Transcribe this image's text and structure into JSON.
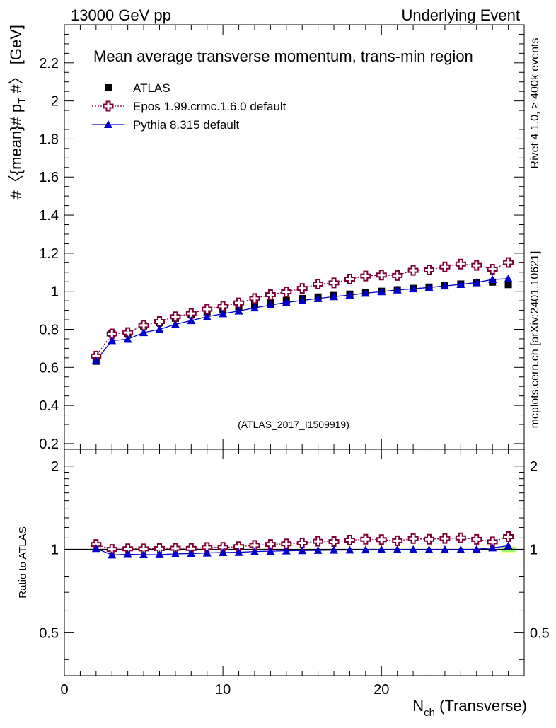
{
  "header": {
    "left": "13000 GeV pp",
    "right": "Underlying Event"
  },
  "side_labels": {
    "rivet": "Rivet 4.1.0, ≥ 400k events",
    "mcplots": "mcplots.cern.ch [arXiv:2401.10621]"
  },
  "colors": {
    "atlas": "#000000",
    "epos": "#800033",
    "pythia": "#0000cc",
    "band_yellow": "#ffff66",
    "band_green": "#99ff66"
  },
  "chart_data": [
    {
      "type": "scatter",
      "title": "Mean average transverse momentum, trans-min region",
      "watermark": "(ATLAS_2017_I1509919)",
      "ylabel_parts": [
        "#〈{mean}# p",
        "T",
        " #〉 [GeV]"
      ],
      "ylim": [
        0.17,
        2.4
      ],
      "yticks": [
        0.2,
        0.4,
        0.6,
        0.8,
        1,
        1.2,
        1.4,
        1.6,
        1.8,
        2,
        2.2
      ],
      "ytick_labels": [
        "0.2",
        "0.4",
        "0.6",
        "0.8",
        "1",
        "1.2",
        "1.4",
        "1.6",
        "1.8",
        "2",
        "2.2"
      ],
      "legend_position": "top-left",
      "x": [
        2,
        3,
        4,
        5,
        6,
        7,
        8,
        9,
        10,
        11,
        12,
        13,
        14,
        15,
        16,
        17,
        18,
        19,
        20,
        21,
        22,
        23,
        24,
        25,
        26,
        27,
        28
      ],
      "series": [
        {
          "name": "ATLAS",
          "marker": "square",
          "values": [
            0.632,
            0.776,
            0.779,
            0.818,
            0.835,
            0.858,
            0.876,
            0.892,
            0.906,
            0.918,
            0.93,
            0.942,
            0.952,
            0.962,
            0.97,
            0.978,
            0.985,
            0.993,
            1.0,
            1.008,
            1.015,
            1.022,
            1.03,
            1.038,
            1.045,
            1.048,
            1.035
          ]
        },
        {
          "name": "Epos 1.99.crmc.1.6.0 default",
          "marker": "open-cross",
          "values": [
            0.659,
            0.776,
            0.783,
            0.821,
            0.841,
            0.866,
            0.883,
            0.906,
            0.921,
            0.939,
            0.962,
            0.982,
            0.997,
            1.015,
            1.038,
            1.044,
            1.064,
            1.08,
            1.085,
            1.083,
            1.11,
            1.112,
            1.128,
            1.143,
            1.136,
            1.116,
            1.151
          ]
        },
        {
          "name": "Pythia 8.315 default",
          "marker": "triangle",
          "values": [
            0.637,
            0.741,
            0.748,
            0.783,
            0.8,
            0.826,
            0.846,
            0.866,
            0.882,
            0.896,
            0.913,
            0.928,
            0.941,
            0.952,
            0.962,
            0.972,
            0.98,
            0.99,
            0.998,
            1.007,
            1.013,
            1.02,
            1.028,
            1.036,
            1.046,
            1.062,
            1.066
          ]
        }
      ]
    },
    {
      "type": "scatter",
      "ylabel": "Ratio to ATLAS",
      "xlabel_main": "N",
      "xlabel_sub": "ch",
      "xlabel_tail": " (Transverse)",
      "xlim": [
        0,
        29
      ],
      "xticks": [
        0,
        10,
        20
      ],
      "xtick_labels": [
        "0",
        "10",
        "20"
      ],
      "ylim": [
        0.35,
        2.3
      ],
      "yticks": [
        0.5,
        1,
        2
      ],
      "ytick_labels": [
        "0.5",
        "1",
        "2"
      ],
      "x": [
        2,
        3,
        4,
        5,
        6,
        7,
        8,
        9,
        10,
        11,
        12,
        13,
        14,
        15,
        16,
        17,
        18,
        19,
        20,
        21,
        22,
        23,
        24,
        25,
        26,
        27,
        28
      ],
      "band_last_point": {
        "x": 28,
        "yellow": [
          0.975,
          1.025
        ],
        "green": [
          0.98,
          1.02
        ]
      },
      "series": [
        {
          "name": "Epos 1.99.crmc.1.6.0 default",
          "marker": "open-cross",
          "values": [
            1.042,
            1.0,
            1.005,
            1.004,
            1.007,
            1.009,
            1.008,
            1.016,
            1.017,
            1.023,
            1.034,
            1.042,
            1.047,
            1.055,
            1.07,
            1.067,
            1.08,
            1.088,
            1.085,
            1.074,
            1.094,
            1.088,
            1.095,
            1.101,
            1.087,
            1.065,
            1.112
          ]
        },
        {
          "name": "Pythia 8.315 default",
          "marker": "triangle",
          "values": [
            1.008,
            0.955,
            0.96,
            0.957,
            0.958,
            0.963,
            0.966,
            0.971,
            0.974,
            0.976,
            0.982,
            0.985,
            0.988,
            0.99,
            0.992,
            0.994,
            0.995,
            0.997,
            0.998,
            0.999,
            0.998,
            0.998,
            0.998,
            0.998,
            1.001,
            1.013,
            1.03
          ]
        }
      ]
    }
  ]
}
